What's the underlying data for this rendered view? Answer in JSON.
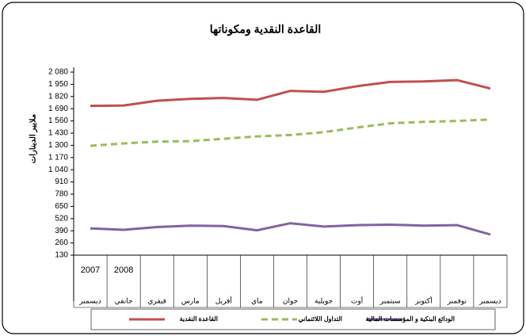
{
  "chart_data": {
    "type": "line",
    "title": "القاعدة النقدية ومكوناتها",
    "y_label": "ملايير الدينارات",
    "categories": [
      "ديسمبر",
      "جانفي",
      "فيفري",
      "مارس",
      "أفريل",
      "ماي",
      "جوان",
      "جويلية",
      "أوت",
      "سبتمبر",
      "أكتوبر",
      "نوفمبر",
      "ديسمبر"
    ],
    "years": [
      "2007",
      "2008"
    ],
    "series": [
      {
        "name": "القاعدة النقدية",
        "color": "#c0504d",
        "style": "solid",
        "values": [
          1720,
          1725,
          1775,
          1795,
          1805,
          1785,
          1880,
          1870,
          1930,
          1975,
          1980,
          1995,
          1905
        ]
      },
      {
        "name": "التداول اللائتماني",
        "color": "#9bbb59",
        "style": "dashed",
        "values": [
          1295,
          1320,
          1340,
          1345,
          1370,
          1395,
          1410,
          1440,
          1490,
          1535,
          1550,
          1560,
          1575
        ]
      },
      {
        "name": "الودائع البنكية و المؤسسات المالية",
        "color": "#8064a2",
        "style": "solid",
        "values": [
          415,
          400,
          430,
          445,
          440,
          395,
          470,
          435,
          450,
          455,
          445,
          450,
          350
        ]
      }
    ],
    "ylim": [
      130,
      2080
    ],
    "yticks": [
      130,
      260,
      390,
      520,
      650,
      780,
      910,
      {
        "value": 1040,
        "label": "1 040"
      },
      {
        "value": 1170,
        "label": "1 170"
      },
      {
        "value": 1300,
        "label": "1 300"
      },
      {
        "value": 1430,
        "label": "1 430"
      },
      {
        "value": 1560,
        "label": "1 560"
      },
      {
        "value": 1690,
        "label": "1 690"
      },
      {
        "value": 1820,
        "label": "1 820"
      },
      {
        "value": 1950,
        "label": "1 950"
      },
      {
        "value": 2080,
        "label": "2 080"
      }
    ],
    "grid": false
  }
}
